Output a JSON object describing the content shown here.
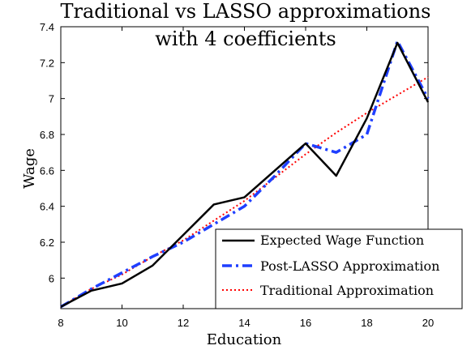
{
  "chart_data": {
    "type": "line",
    "title_lines": [
      "Traditional vs LASSO approximations",
      "with 4 coefficients"
    ],
    "xlabel": "Education",
    "ylabel": "Wage",
    "xlim": [
      8,
      20
    ],
    "ylim": [
      5.83,
      7.4
    ],
    "xticks": [
      8,
      10,
      12,
      14,
      16,
      18,
      20
    ],
    "yticks": [
      6,
      6.2,
      6.4,
      6.6,
      6.8,
      7,
      7.2,
      7.4
    ],
    "ytick_labels": [
      "6",
      "6.2",
      "6.4",
      "6.6",
      "6.8",
      "7",
      "7.2",
      "7.4"
    ],
    "grid": false,
    "legend_position": "bottom-right",
    "x": [
      8,
      9,
      10,
      11,
      12,
      13,
      14,
      15,
      16,
      17,
      18,
      19,
      20
    ],
    "series": [
      {
        "name": "Expected Wage Function",
        "color": "#000000",
        "style": "solid",
        "values": [
          5.84,
          5.93,
          5.97,
          6.07,
          6.24,
          6.41,
          6.45,
          6.6,
          6.75,
          6.57,
          6.89,
          7.31,
          6.98
        ]
      },
      {
        "name": "Post-LASSO Approximation",
        "color": "#1f3fff",
        "style": "dashdot",
        "values": [
          5.84,
          5.94,
          6.03,
          6.12,
          6.2,
          6.3,
          6.4,
          6.57,
          6.75,
          6.7,
          6.8,
          7.32,
          7.0
        ]
      },
      {
        "name": "Traditional Approximation",
        "color": "#ff0000",
        "style": "dotted",
        "values": [
          5.84,
          5.94,
          6.02,
          6.12,
          6.21,
          6.32,
          6.43,
          6.56,
          6.69,
          6.81,
          6.92,
          7.02,
          7.12
        ]
      }
    ]
  }
}
